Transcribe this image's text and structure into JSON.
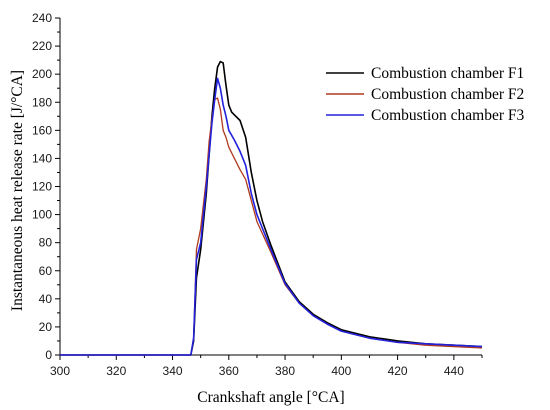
{
  "chart_data": {
    "type": "line",
    "title": "",
    "xlabel": "Crankshaft angle [°CA]",
    "ylabel": "Instantaneous heat release rate [J/°CA]",
    "xlim": [
      300,
      450
    ],
    "ylim": [
      0,
      240
    ],
    "xticks": [
      300,
      320,
      340,
      360,
      380,
      400,
      420,
      440
    ],
    "yticks": [
      0,
      20,
      40,
      60,
      80,
      100,
      120,
      140,
      160,
      180,
      200,
      220,
      240
    ],
    "grid": false,
    "legend_position": "top-right",
    "series": [
      {
        "name": "Combustion chamber F1",
        "color": "#000000",
        "points": [
          [
            300,
            0
          ],
          [
            345,
            0
          ],
          [
            346.5,
            0
          ],
          [
            347.5,
            10
          ],
          [
            348.5,
            55
          ],
          [
            350,
            75
          ],
          [
            352,
            115
          ],
          [
            354,
            170
          ],
          [
            355,
            190
          ],
          [
            356,
            205
          ],
          [
            357,
            209
          ],
          [
            358,
            208
          ],
          [
            359,
            192
          ],
          [
            360,
            178
          ],
          [
            361,
            173
          ],
          [
            362,
            171
          ],
          [
            364,
            167
          ],
          [
            366,
            155
          ],
          [
            368,
            130
          ],
          [
            370,
            110
          ],
          [
            372,
            95
          ],
          [
            375,
            78
          ],
          [
            380,
            52
          ],
          [
            385,
            38
          ],
          [
            390,
            29
          ],
          [
            395,
            23
          ],
          [
            400,
            18
          ],
          [
            410,
            13
          ],
          [
            420,
            10
          ],
          [
            430,
            8
          ],
          [
            440,
            7
          ],
          [
            450,
            6
          ]
        ]
      },
      {
        "name": "Combustion chamber F2",
        "color": "#b03a1f",
        "points": [
          [
            300,
            0
          ],
          [
            345,
            0
          ],
          [
            346.5,
            0
          ],
          [
            347.5,
            12
          ],
          [
            348.5,
            75
          ],
          [
            350,
            90
          ],
          [
            352,
            125
          ],
          [
            353,
            152
          ],
          [
            354,
            168
          ],
          [
            355,
            182
          ],
          [
            356,
            183
          ],
          [
            357,
            175
          ],
          [
            358,
            160
          ],
          [
            359,
            155
          ],
          [
            360,
            148
          ],
          [
            362,
            140
          ],
          [
            364,
            132
          ],
          [
            366,
            125
          ],
          [
            368,
            110
          ],
          [
            370,
            95
          ],
          [
            375,
            73
          ],
          [
            380,
            50
          ],
          [
            385,
            37
          ],
          [
            390,
            28
          ],
          [
            395,
            22
          ],
          [
            400,
            17
          ],
          [
            410,
            12
          ],
          [
            420,
            9
          ],
          [
            430,
            7
          ],
          [
            440,
            6
          ],
          [
            450,
            5
          ]
        ]
      },
      {
        "name": "Combustion chamber F3",
        "color": "#2222dd",
        "points": [
          [
            300,
            0
          ],
          [
            345,
            0
          ],
          [
            346.5,
            0
          ],
          [
            347.5,
            12
          ],
          [
            348.5,
            68
          ],
          [
            350,
            80
          ],
          [
            352,
            120
          ],
          [
            354,
            165
          ],
          [
            355,
            182
          ],
          [
            356,
            197
          ],
          [
            357,
            190
          ],
          [
            358,
            178
          ],
          [
            359,
            170
          ],
          [
            360,
            160
          ],
          [
            362,
            153
          ],
          [
            364,
            145
          ],
          [
            366,
            135
          ],
          [
            368,
            115
          ],
          [
            370,
            100
          ],
          [
            375,
            75
          ],
          [
            380,
            51
          ],
          [
            385,
            37
          ],
          [
            390,
            28
          ],
          [
            395,
            22
          ],
          [
            400,
            17
          ],
          [
            410,
            12
          ],
          [
            420,
            9
          ],
          [
            430,
            8
          ],
          [
            440,
            7
          ],
          [
            450,
            6
          ]
        ]
      }
    ]
  }
}
